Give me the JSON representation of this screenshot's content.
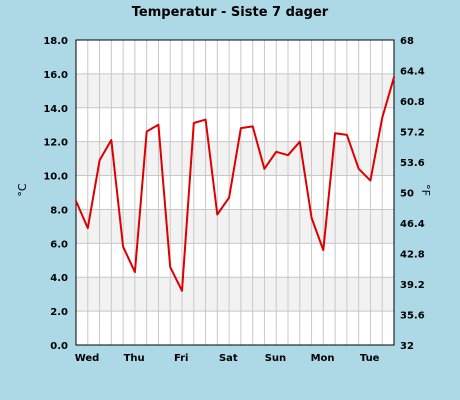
{
  "chart_data": {
    "type": "line",
    "title": "Temperatur - Siste 7 dager",
    "ylabel": "°C",
    "y2label": "°F",
    "ylim": [
      0,
      18
    ],
    "y2lim": [
      32,
      68
    ],
    "y_ticks": [
      "0.0",
      "2.0",
      "4.0",
      "6.0",
      "8.0",
      "10.0",
      "12.0",
      "14.0",
      "16.0",
      "18.0"
    ],
    "y2_ticks": [
      "32",
      "35.6",
      "39.2",
      "42.8",
      "46.4",
      "50",
      "53.6",
      "57.2",
      "60.8",
      "64.4",
      "68"
    ],
    "x_ticks": [
      {
        "label": "Wed",
        "day": 0
      },
      {
        "label": "Thu",
        "day": 1
      },
      {
        "label": "Fri",
        "day": 2
      },
      {
        "label": "Sat",
        "day": 3
      },
      {
        "label": "Sun",
        "day": 4
      },
      {
        "label": "Mon",
        "day": 5
      },
      {
        "label": "Tue",
        "day": 6
      }
    ],
    "xlim": [
      0,
      6.75
    ],
    "grid": true,
    "colors": {
      "background": "#ADD8E6",
      "plot": "#FFFFFF",
      "band": "#F2F2F2",
      "grid": "#C8C8C8",
      "line": "#DD0000"
    },
    "series": [
      {
        "x": [
          0,
          0.25,
          0.5,
          0.75,
          1.0,
          1.25,
          1.5,
          1.75,
          2.0,
          2.25,
          2.5,
          2.75,
          3.0,
          3.25,
          3.5,
          3.75,
          4.0,
          4.25,
          4.5,
          4.75,
          5.0,
          5.25,
          5.5,
          5.75,
          6.0,
          6.25,
          6.5,
          6.75
        ],
        "values": [
          8.5,
          6.9,
          10.9,
          12.1,
          5.8,
          4.3,
          12.6,
          13.0,
          4.6,
          3.2,
          13.1,
          13.3,
          7.7,
          8.7,
          12.8,
          12.9,
          10.4,
          11.4,
          11.2,
          12.0,
          7.5,
          5.6,
          12.5,
          12.4,
          10.4,
          9.7,
          13.4,
          15.8
        ]
      }
    ]
  }
}
